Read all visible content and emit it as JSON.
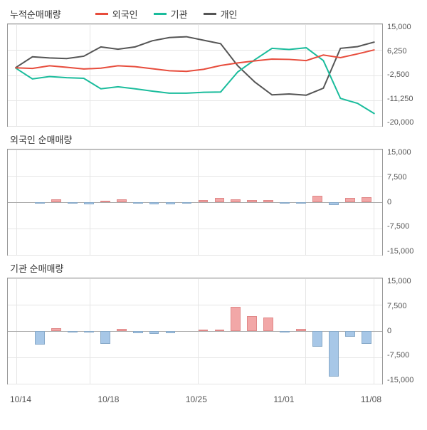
{
  "background_color": "#ffffff",
  "grid_color": "#e5e5e5",
  "border_color": "#999999",
  "text_color": "#333333",
  "tick_color": "#555555",
  "x_labels": [
    "10/14",
    "10/18",
    "10/25",
    "11/01",
    "11/08"
  ],
  "panel1": {
    "title": "누적순매매량",
    "type": "line",
    "height": 145,
    "ylim": [
      -20000,
      15000
    ],
    "ytick_labels": [
      "15,000",
      "6,250",
      "-2,500",
      "-11,250",
      "-20,000"
    ],
    "yticks": [
      15000,
      6250,
      -2500,
      -11250,
      -20000
    ],
    "legend": [
      {
        "label": "외국인",
        "color": "#e74c3c"
      },
      {
        "label": "기관",
        "color": "#1abc9c"
      },
      {
        "label": "개인",
        "color": "#555555"
      }
    ],
    "series": {
      "foreign": {
        "color": "#e74c3c",
        "width": 2,
        "data": [
          0,
          -200,
          700,
          200,
          -400,
          -100,
          700,
          400,
          -300,
          -1000,
          -1200,
          -500,
          800,
          1700,
          2400,
          3000,
          2900,
          2500,
          4400,
          3500,
          4800,
          6200
        ]
      },
      "inst": {
        "color": "#1abc9c",
        "width": 2,
        "data": [
          0,
          -3800,
          -3000,
          -3400,
          -3600,
          -7200,
          -6500,
          -7200,
          -8000,
          -8700,
          -8700,
          -8400,
          -8300,
          -1400,
          2800,
          6700,
          6300,
          6900,
          2500,
          -10500,
          -12200,
          -15800
        ]
      },
      "indiv": {
        "color": "#555555",
        "width": 2,
        "data": [
          0,
          3800,
          3400,
          3200,
          4000,
          7200,
          6400,
          7200,
          9300,
          10400,
          10700,
          9500,
          8300,
          700,
          -4900,
          -9300,
          -9000,
          -9400,
          -7000,
          6700,
          7300,
          8900
        ]
      }
    }
  },
  "panel2": {
    "title": "외국인 순매매량",
    "type": "bar",
    "height": 150,
    "ylim": [
      -15000,
      15000
    ],
    "ytick_labels": [
      "15,000",
      "7,500",
      "0",
      "-7,500",
      "-15,000"
    ],
    "yticks": [
      15000,
      7500,
      0,
      -7500,
      -15000
    ],
    "pos_color": "#f2a7a7",
    "neg_color": "#a7c7e7",
    "border_pos": "#e08888",
    "border_neg": "#88aac9",
    "bar_width": 0.6,
    "data": [
      0,
      -200,
      900,
      -500,
      -600,
      300,
      800,
      -300,
      -700,
      -700,
      -200,
      700,
      1300,
      900,
      700,
      600,
      -100,
      -400,
      1900,
      -900,
      1300,
      1400
    ]
  },
  "panel3": {
    "title": "기관 순매매량",
    "type": "bar",
    "height": 150,
    "ylim": [
      -15000,
      15000
    ],
    "ytick_labels": [
      "15,000",
      "7,500",
      "0",
      "-7,500",
      "-15,000"
    ],
    "yticks": [
      15000,
      7500,
      0,
      -7500,
      -15000
    ],
    "pos_color": "#f2a7a7",
    "neg_color": "#a7c7e7",
    "border_pos": "#e08888",
    "border_neg": "#88aac9",
    "bar_width": 0.6,
    "data": [
      0,
      -3800,
      800,
      -400,
      -200,
      -3600,
      700,
      -700,
      -800,
      -700,
      0,
      300,
      100,
      6900,
      4200,
      3900,
      -400,
      600,
      -4400,
      -13000,
      -1700,
      -3600
    ]
  },
  "vgrid_positions": [
    0.023,
    0.218,
    0.507,
    0.795,
    0.977
  ]
}
